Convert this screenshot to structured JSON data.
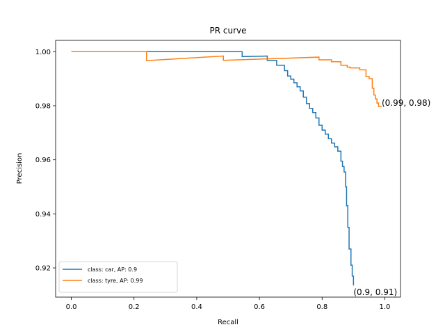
{
  "chart_data": {
    "type": "line",
    "title": "PR curve",
    "xlabel": "Recall",
    "ylabel": "Precision",
    "xlim": [
      -0.05,
      1.05
    ],
    "ylim": [
      0.9092,
      1.0042
    ],
    "xticks": [
      0.0,
      0.2,
      0.4,
      0.6,
      0.8,
      1.0
    ],
    "xtick_labels": [
      "0.0",
      "0.2",
      "0.4",
      "0.6",
      "0.8",
      "1.0"
    ],
    "yticks": [
      0.92,
      0.94,
      0.96,
      0.98,
      1.0
    ],
    "ytick_labels": [
      "0.92",
      "0.94",
      "0.96",
      "0.98",
      "1.00"
    ],
    "grid": false,
    "legend_position": "bottom-left",
    "series": [
      {
        "name": "class: car, AP: 0.9",
        "color": "#1f77b4",
        "points": [
          [
            0.0,
            1.0
          ],
          [
            0.545,
            1.0
          ],
          [
            0.545,
            0.9982
          ],
          [
            0.625,
            0.9984
          ],
          [
            0.625,
            0.9968
          ],
          [
            0.655,
            0.9968
          ],
          [
            0.655,
            0.995
          ],
          [
            0.68,
            0.995
          ],
          [
            0.68,
            0.993
          ],
          [
            0.69,
            0.993
          ],
          [
            0.69,
            0.991
          ],
          [
            0.7,
            0.991
          ],
          [
            0.7,
            0.9898
          ],
          [
            0.71,
            0.9898
          ],
          [
            0.71,
            0.9885
          ],
          [
            0.72,
            0.9885
          ],
          [
            0.72,
            0.987
          ],
          [
            0.73,
            0.987
          ],
          [
            0.73,
            0.9855
          ],
          [
            0.74,
            0.9855
          ],
          [
            0.74,
            0.9832
          ],
          [
            0.75,
            0.9832
          ],
          [
            0.75,
            0.9808
          ],
          [
            0.76,
            0.9808
          ],
          [
            0.76,
            0.979
          ],
          [
            0.77,
            0.979
          ],
          [
            0.77,
            0.9775
          ],
          [
            0.78,
            0.9775
          ],
          [
            0.78,
            0.9755
          ],
          [
            0.79,
            0.9755
          ],
          [
            0.79,
            0.9728
          ],
          [
            0.8,
            0.9728
          ],
          [
            0.8,
            0.971
          ],
          [
            0.81,
            0.971
          ],
          [
            0.81,
            0.9695
          ],
          [
            0.82,
            0.9695
          ],
          [
            0.82,
            0.9678
          ],
          [
            0.83,
            0.9678
          ],
          [
            0.83,
            0.9662
          ],
          [
            0.84,
            0.9662
          ],
          [
            0.84,
            0.9648
          ],
          [
            0.85,
            0.9648
          ],
          [
            0.85,
            0.9632
          ],
          [
            0.86,
            0.9632
          ],
          [
            0.86,
            0.9595
          ],
          [
            0.865,
            0.9595
          ],
          [
            0.865,
            0.9575
          ],
          [
            0.87,
            0.9575
          ],
          [
            0.87,
            0.9555
          ],
          [
            0.875,
            0.9555
          ],
          [
            0.875,
            0.95
          ],
          [
            0.878,
            0.95
          ],
          [
            0.878,
            0.943
          ],
          [
            0.882,
            0.943
          ],
          [
            0.882,
            0.935
          ],
          [
            0.886,
            0.935
          ],
          [
            0.886,
            0.927
          ],
          [
            0.892,
            0.927
          ],
          [
            0.892,
            0.921
          ],
          [
            0.896,
            0.921
          ],
          [
            0.896,
            0.917
          ],
          [
            0.9,
            0.917
          ],
          [
            0.9,
            0.9135
          ]
        ]
      },
      {
        "name": "class: tyre, AP: 0.99",
        "color": "#ff7f0e",
        "points": [
          [
            0.0,
            1.0
          ],
          [
            0.24,
            1.0
          ],
          [
            0.24,
            0.9967
          ],
          [
            0.485,
            0.9984
          ],
          [
            0.485,
            0.9968
          ],
          [
            0.79,
            0.998
          ],
          [
            0.79,
            0.997
          ],
          [
            0.83,
            0.997
          ],
          [
            0.83,
            0.9963
          ],
          [
            0.86,
            0.9963
          ],
          [
            0.86,
            0.995
          ],
          [
            0.88,
            0.995
          ],
          [
            0.88,
            0.9943
          ],
          [
            0.89,
            0.9943
          ],
          [
            0.89,
            0.994
          ],
          [
            0.92,
            0.994
          ],
          [
            0.92,
            0.9933
          ],
          [
            0.94,
            0.9933
          ],
          [
            0.94,
            0.9908
          ],
          [
            0.95,
            0.9908
          ],
          [
            0.95,
            0.99
          ],
          [
            0.96,
            0.99
          ],
          [
            0.96,
            0.9865
          ],
          [
            0.965,
            0.9865
          ],
          [
            0.965,
            0.984
          ],
          [
            0.97,
            0.984
          ],
          [
            0.97,
            0.9825
          ],
          [
            0.975,
            0.9825
          ],
          [
            0.975,
            0.981
          ],
          [
            0.98,
            0.981
          ],
          [
            0.98,
            0.9797
          ],
          [
            0.99,
            0.9797
          ]
        ]
      }
    ],
    "annotations": [
      {
        "text": "(0.99, 0.98)",
        "x": 0.99,
        "y": 0.98
      },
      {
        "text": "(0.9, 0.91)",
        "x": 0.9,
        "y": 0.91
      }
    ]
  }
}
